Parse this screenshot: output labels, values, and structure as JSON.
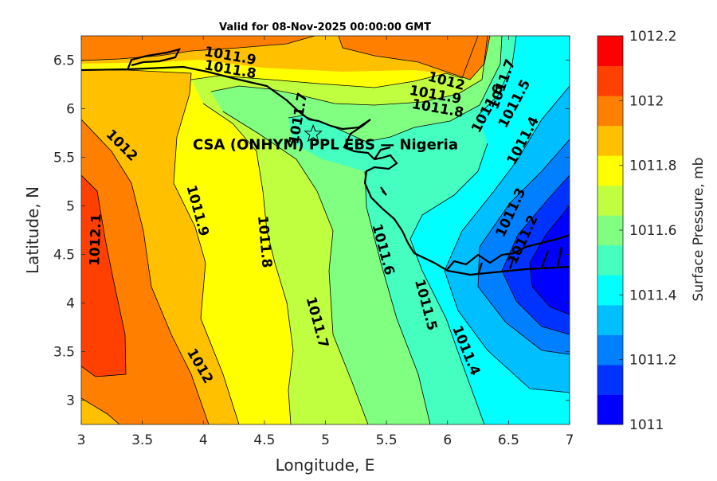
{
  "chart_data": {
    "type": "contour",
    "title": "Valid for 08-Nov-2025 00:00:00 GMT",
    "xlabel": "Longitude, E",
    "ylabel": "Latitude, N",
    "xlim": [
      3,
      7
    ],
    "ylim": [
      2.75,
      6.75
    ],
    "xticks": [
      "3",
      "3.5",
      "4",
      "4.5",
      "5",
      "5.5",
      "6",
      "6.5",
      "7"
    ],
    "xtick_values": [
      3,
      3.5,
      4,
      4.5,
      5,
      5.5,
      6,
      6.5,
      7
    ],
    "yticks": [
      "3",
      "3.5",
      "4",
      "4.5",
      "5",
      "5.5",
      "6",
      "6.5"
    ],
    "ytick_values": [
      3,
      3.5,
      4,
      4.5,
      5,
      5.5,
      6,
      6.5
    ],
    "colorbar": {
      "label": "Surface Pressure, mb",
      "range": [
        1011,
        1012.2
      ],
      "ticks": [
        "1011",
        "1011.2",
        "1011.4",
        "1011.6",
        "1011.8",
        "1012",
        "1012.2"
      ],
      "tick_values": [
        1011,
        1011.2,
        1011.4,
        1011.6,
        1011.8,
        1012,
        1012.2
      ],
      "colors": [
        "#0000ff",
        "#0033ff",
        "#0080ff",
        "#00bfff",
        "#00ffff",
        "#44ffc0",
        "#80ff80",
        "#c0ff40",
        "#ffff00",
        "#ffc000",
        "#ff8000",
        "#ff4000",
        "#ff0000"
      ]
    },
    "contour_labels": [
      {
        "text": "1011.9",
        "lon": 4.22,
        "lat": 6.54
      },
      {
        "text": "1011.8",
        "lon": 4.22,
        "lat": 6.4
      },
      {
        "text": "1012",
        "lon": 5.99,
        "lat": 6.28
      },
      {
        "text": "1011.9",
        "lon": 5.9,
        "lat": 6.14
      },
      {
        "text": "1011.8",
        "lon": 5.92,
        "lat": 6.0
      },
      {
        "text": "1011.7",
        "lon": 6.45,
        "lat": 6.25
      },
      {
        "text": "1011.6",
        "lon": 6.33,
        "lat": 6.0
      },
      {
        "text": "1011.5",
        "lon": 6.55,
        "lat": 6.05
      },
      {
        "text": "1011.7",
        "lon": 4.78,
        "lat": 5.9
      },
      {
        "text": "1012",
        "lon": 3.33,
        "lat": 5.62
      },
      {
        "text": "1011.4",
        "lon": 6.62,
        "lat": 5.67
      },
      {
        "text": "1011.9",
        "lon": 3.95,
        "lat": 4.95
      },
      {
        "text": "1012.1",
        "lon": 3.12,
        "lat": 4.65
      },
      {
        "text": "1011.8",
        "lon": 4.5,
        "lat": 4.63
      },
      {
        "text": "1011.3",
        "lon": 6.52,
        "lat": 4.93
      },
      {
        "text": "1011.2",
        "lon": 6.62,
        "lat": 4.65
      },
      {
        "text": "1011.6",
        "lon": 5.47,
        "lat": 4.55
      },
      {
        "text": "1011.5",
        "lon": 5.82,
        "lat": 3.98
      },
      {
        "text": "1011.7",
        "lon": 4.93,
        "lat": 3.8
      },
      {
        "text": "1011.4",
        "lon": 6.15,
        "lat": 3.51
      },
      {
        "text": "1012",
        "lon": 3.97,
        "lat": 3.35
      }
    ],
    "annotation": {
      "text": "CSA (ONHYM) PPL EBS — Nigeria",
      "lon": 5.0,
      "lat": 5.63
    },
    "marker": {
      "type": "star",
      "lon": 4.9,
      "lat": 5.74
    }
  }
}
